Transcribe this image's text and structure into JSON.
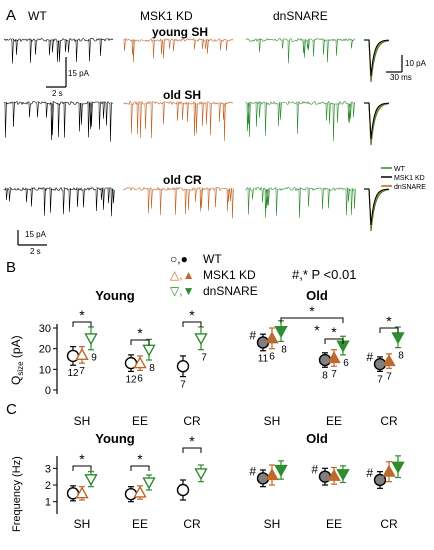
{
  "panels": {
    "A": "A",
    "B": "B",
    "C": "C"
  },
  "traces": {
    "columns": [
      "WT",
      "MSK1 KD",
      "dnSNARE"
    ],
    "rows": [
      "young SH",
      "old SH",
      "old CR"
    ],
    "scalebars": {
      "top_current": "15 pA",
      "top_time": "2 s",
      "bottom_current": "15 pA",
      "bottom_time": "2 s",
      "avg_current": "10 pA",
      "avg_time": "30 ms"
    },
    "avg_legend": [
      "WT",
      "MSK1 KD",
      "dnSNARE"
    ]
  },
  "legend": {
    "wt_marker": "○,●",
    "wt": "WT",
    "msk_marker": "△,▲",
    "msk": "MSK1 KD",
    "dn_marker": "▽,▼",
    "dn": "dnSNARE",
    "sig": "#,* P <0.01"
  },
  "colors": {
    "wt": "#000000",
    "msk": "#c0662a",
    "dn": "#2e8b2e",
    "wt_fill": "#808080",
    "msk_fill": "#b86d30",
    "dn_fill": "#2f8f2f",
    "msk_light": "#e09a50",
    "dn_light": "#8fc870"
  },
  "chart_data": [
    {
      "type": "scatter",
      "panel": "B-young",
      "title": "Young",
      "ylabel": "Q",
      "ylabel_sub": "size",
      "ylabel_unit": " (pA)",
      "ylim": [
        0,
        30
      ],
      "yticks": [
        "0",
        "10",
        "20",
        "30"
      ],
      "categories": [
        "SH",
        "EE",
        "CR"
      ],
      "series": [
        {
          "name": "WT",
          "points": [
            {
              "cat": "SH",
              "mean": 16.5,
              "err": 4.5,
              "n": "12",
              "hash": ""
            },
            {
              "cat": "EE",
              "mean": 13,
              "err": 4,
              "n": "12",
              "hash": ""
            },
            {
              "cat": "CR",
              "mean": 11.5,
              "err": 5,
              "n": "7",
              "hash": ""
            }
          ]
        },
        {
          "name": "MSK1 KD",
          "points": [
            {
              "cat": "SH",
              "mean": 17,
              "err": 4,
              "n": "7",
              "hash": ""
            },
            {
              "cat": "EE",
              "mean": 13,
              "err": 3.5,
              "n": "6",
              "hash": ""
            }
          ]
        },
        {
          "name": "dnSNARE",
          "points": [
            {
              "cat": "SH",
              "mean": 25,
              "err": 5.5,
              "n": "9",
              "hash": ""
            },
            {
              "cat": "EE",
              "mean": 19.5,
              "err": 5,
              "n": "8",
              "hash": ""
            },
            {
              "cat": "CR",
              "mean": 25,
              "err": 5.5,
              "n": "7",
              "hash": ""
            }
          ]
        }
      ],
      "sig_marks": [
        "*",
        "*",
        "*"
      ]
    },
    {
      "type": "scatter",
      "panel": "B-old",
      "title": "Old",
      "ylim": [
        0,
        30
      ],
      "categories": [
        "SH",
        "EE",
        "CR"
      ],
      "series": [
        {
          "name": "WT",
          "points": [
            {
              "cat": "SH",
              "mean": 23,
              "err": 4,
              "n": "11",
              "hash": "#"
            },
            {
              "cat": "EE",
              "mean": 14.5,
              "err": 3.5,
              "n": "8",
              "hash": ""
            },
            {
              "cat": "CR",
              "mean": 12.5,
              "err": 3.5,
              "n": "7",
              "hash": "#"
            }
          ]
        },
        {
          "name": "MSK1 KD",
          "points": [
            {
              "cat": "SH",
              "mean": 25,
              "err": 5,
              "n": "6",
              "hash": ""
            },
            {
              "cat": "EE",
              "mean": 15.5,
              "err": 4,
              "n": "7",
              "hash": ""
            },
            {
              "cat": "CR",
              "mean": 14,
              "err": 3.5,
              "n": "7",
              "hash": ""
            }
          ]
        },
        {
          "name": "dnSNARE",
          "points": [
            {
              "cat": "SH",
              "mean": 28.5,
              "err": 5,
              "n": "8",
              "hash": ""
            },
            {
              "cat": "EE",
              "mean": 21.5,
              "err": 4.5,
              "n": "6",
              "hash": ""
            },
            {
              "cat": "CR",
              "mean": 25.5,
              "err": 5,
              "n": "8",
              "hash": ""
            }
          ]
        }
      ],
      "sig_marks": [
        "*",
        "*",
        "*",
        "*"
      ]
    },
    {
      "type": "scatter",
      "panel": "C-young",
      "title": "Young",
      "ylabel": "Frequency (Hz)",
      "ylim": [
        0.5,
        3.5
      ],
      "yticks": [
        "1",
        "2",
        "3"
      ],
      "categories": [
        "SH",
        "EE",
        "CR"
      ],
      "series": [
        {
          "name": "WT",
          "points": [
            {
              "cat": "SH",
              "mean": 1.5,
              "err": 0.45,
              "hash": ""
            },
            {
              "cat": "EE",
              "mean": 1.45,
              "err": 0.45,
              "hash": ""
            },
            {
              "cat": "CR",
              "mean": 1.7,
              "err": 0.6,
              "hash": ""
            }
          ]
        },
        {
          "name": "MSK1 KD",
          "points": [
            {
              "cat": "SH",
              "mean": 1.5,
              "err": 0.4,
              "hash": ""
            },
            {
              "cat": "EE",
              "mean": 1.55,
              "err": 0.4,
              "hash": ""
            }
          ]
        },
        {
          "name": "dnSNARE",
          "points": [
            {
              "cat": "SH",
              "mean": 2.35,
              "err": 0.45,
              "hash": ""
            },
            {
              "cat": "EE",
              "mean": 2.15,
              "err": 0.45,
              "hash": ""
            },
            {
              "cat": "CR",
              "mean": 2.7,
              "err": 0.5,
              "hash": ""
            }
          ]
        }
      ],
      "sig_marks": [
        "*",
        "*",
        "*"
      ]
    },
    {
      "type": "scatter",
      "panel": "C-old",
      "title": "Old",
      "ylim": [
        0.5,
        3.5
      ],
      "categories": [
        "SH",
        "EE",
        "CR"
      ],
      "series": [
        {
          "name": "WT",
          "points": [
            {
              "cat": "SH",
              "mean": 2.4,
              "err": 0.5,
              "hash": "#"
            },
            {
              "cat": "EE",
              "mean": 2.5,
              "err": 0.5,
              "hash": "#"
            },
            {
              "cat": "CR",
              "mean": 2.3,
              "err": 0.5,
              "hash": "#"
            }
          ]
        },
        {
          "name": "MSK1 KD",
          "points": [
            {
              "cat": "SH",
              "mean": 2.6,
              "err": 0.6,
              "hash": ""
            },
            {
              "cat": "EE",
              "mean": 2.55,
              "err": 0.5,
              "hash": ""
            },
            {
              "cat": "CR",
              "mean": 2.8,
              "err": 0.6,
              "hash": ""
            }
          ]
        },
        {
          "name": "dnSNARE",
          "points": [
            {
              "cat": "SH",
              "mean": 2.9,
              "err": 0.55,
              "hash": ""
            },
            {
              "cat": "EE",
              "mean": 2.65,
              "err": 0.5,
              "hash": ""
            },
            {
              "cat": "CR",
              "mean": 3.1,
              "err": 0.65,
              "hash": ""
            }
          ]
        }
      ],
      "sig_marks": []
    }
  ]
}
